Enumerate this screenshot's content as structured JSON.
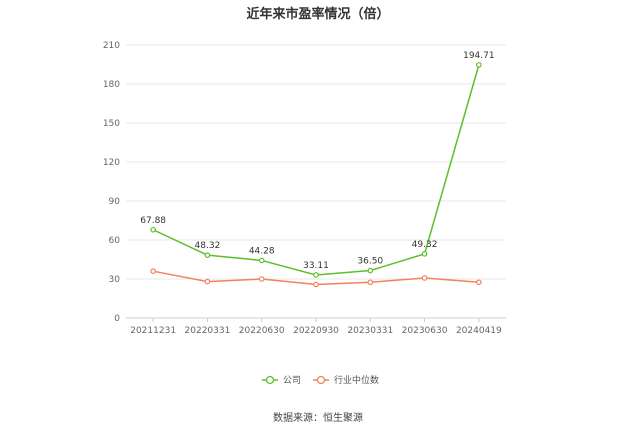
{
  "chart_data": {
    "type": "line",
    "title": "近年来市盈率情况（倍）",
    "categories": [
      "20211231",
      "20220331",
      "20220630",
      "20220930",
      "20230331",
      "20230630",
      "20240419"
    ],
    "series": [
      {
        "name": "公司",
        "values": [
          67.88,
          48.32,
          44.28,
          33.11,
          36.5,
          49.32,
          194.71
        ],
        "labels": [
          "67.88",
          "48.32",
          "44.28",
          "33.11",
          "36.50",
          "49.32",
          "194.71"
        ],
        "color": "#5cbf2a"
      },
      {
        "name": "行业中位数",
        "values": [
          36.0,
          28.0,
          30.0,
          25.8,
          27.5,
          30.8,
          27.5
        ],
        "color": "#f0835a"
      }
    ],
    "ylim": [
      0,
      210
    ],
    "yticks": [
      "0",
      "30",
      "60",
      "90",
      "120",
      "150",
      "180",
      "210"
    ],
    "grid": true,
    "legend_position": "bottom-center"
  },
  "source_text": "数据来源：恒生聚源"
}
